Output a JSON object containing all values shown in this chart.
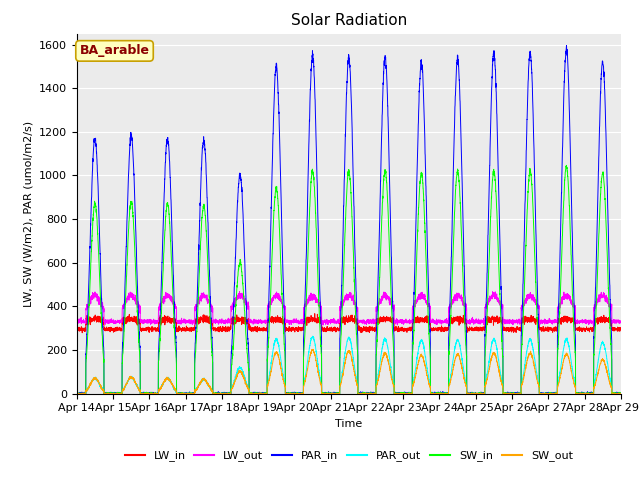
{
  "title": "Solar Radiation",
  "ylabel": "LW, SW (W/m2), PAR (umol/m2/s)",
  "xlabel": "Time",
  "ylim": [
    0,
    1650
  ],
  "yticks": [
    0,
    200,
    400,
    600,
    800,
    1000,
    1200,
    1400,
    1600
  ],
  "annotation": "BA_arable",
  "colors": {
    "LW_in": "#FF0000",
    "LW_out": "#FF00FF",
    "PAR_in": "#0000FF",
    "PAR_out": "#00FFFF",
    "SW_in": "#00FF00",
    "SW_out": "#FFA500"
  },
  "background_color": "#EBEBEB",
  "title_fontsize": 11,
  "axis_label_fontsize": 8,
  "tick_fontsize": 8,
  "par_peaks": [
    1170,
    1180,
    1170,
    1160,
    1000,
    1500,
    1550,
    1540,
    1540,
    1520,
    1530,
    1560,
    1560,
    1580,
    1520
  ],
  "sw_peaks": [
    870,
    880,
    870,
    860,
    600,
    940,
    1020,
    1020,
    1020,
    1010,
    1020,
    1020,
    1020,
    1040,
    1010
  ],
  "sw_out_peaks": [
    70,
    75,
    70,
    65,
    100,
    190,
    200,
    195,
    185,
    175,
    180,
    185,
    185,
    180,
    155
  ],
  "par_out_peaks": [
    70,
    75,
    70,
    65,
    120,
    250,
    260,
    255,
    250,
    245,
    245,
    250,
    248,
    248,
    235
  ]
}
